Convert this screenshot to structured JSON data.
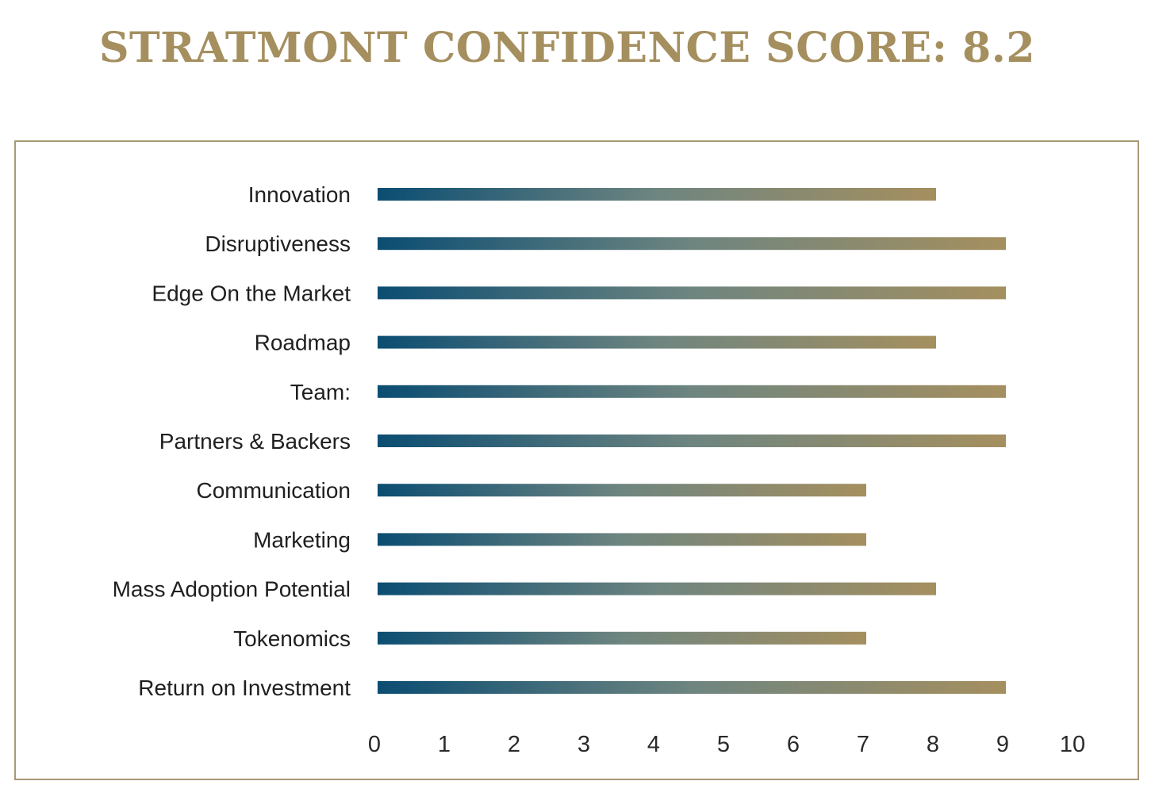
{
  "chart_data": {
    "type": "bar",
    "orientation": "horizontal",
    "title": "STRATMONT CONFIDENCE SCORE: 8.2",
    "categories": [
      "Innovation",
      "Disruptiveness",
      "Edge On the Market",
      "Roadmap",
      "Team:",
      "Partners & Backers",
      "Communication",
      "Marketing",
      "Mass Adoption Potential",
      "Tokenomics",
      "Return on Investment"
    ],
    "values": [
      8,
      9,
      9,
      8,
      9,
      9,
      7,
      7,
      8,
      7,
      9
    ],
    "xlim": [
      0,
      10
    ],
    "xticks": [
      "0",
      "1",
      "2",
      "3",
      "4",
      "5",
      "6",
      "7",
      "8",
      "9",
      "10"
    ],
    "xlabel": "",
    "ylabel": "",
    "grid": false,
    "legend": "none",
    "colors": {
      "bar_gradient_start": "#0b4d72",
      "bar_gradient_mid": "#6e8580",
      "bar_gradient_end": "#a58f5f",
      "title": "#a58f5f",
      "frame": "#a89a76"
    }
  }
}
